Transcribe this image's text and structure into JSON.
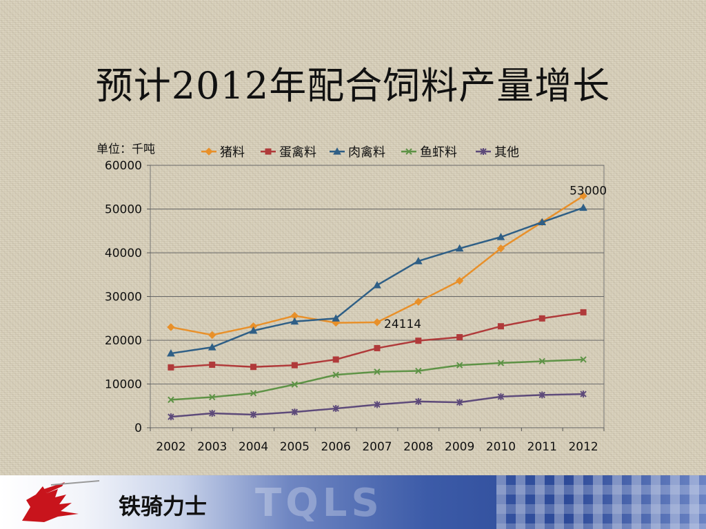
{
  "slide": {
    "title": "预计2012年配合饲料产量增长",
    "unit_label": "单位：千吨",
    "brand": "铁骑力士",
    "footer_watermark": "TQLS"
  },
  "chart_data": {
    "type": "line",
    "title": "",
    "x": [
      "2002",
      "2003",
      "2004",
      "2005",
      "2006",
      "2007",
      "2008",
      "2009",
      "2010",
      "2011",
      "2012"
    ],
    "ylim": [
      0,
      60000
    ],
    "yticks": [
      0,
      10000,
      20000,
      30000,
      40000,
      50000,
      60000
    ],
    "grid": true,
    "legend": "top",
    "series": [
      {
        "name": "猪料",
        "color": "#e8902a",
        "marker": "diamond",
        "values": [
          23000,
          21200,
          23200,
          25600,
          24000,
          24114,
          28800,
          33600,
          41000,
          47000,
          53000
        ]
      },
      {
        "name": "蛋禽料",
        "color": "#b03a3a",
        "marker": "square",
        "values": [
          13800,
          14400,
          13900,
          14300,
          15600,
          18200,
          19900,
          20700,
          23200,
          25000,
          26400
        ]
      },
      {
        "name": "肉禽料",
        "color": "#2f5f86",
        "marker": "triangle",
        "values": [
          17000,
          18400,
          22200,
          24300,
          25000,
          32600,
          38100,
          41000,
          43600,
          47000,
          50300
        ]
      },
      {
        "name": "鱼虾料",
        "color": "#5e9346",
        "marker": "x",
        "values": [
          6400,
          7000,
          7900,
          9900,
          12100,
          12800,
          13000,
          14300,
          14800,
          15200,
          15600
        ]
      },
      {
        "name": "其他",
        "color": "#5d4a7a",
        "marker": "star",
        "values": [
          2500,
          3300,
          3000,
          3600,
          4400,
          5300,
          6000,
          5800,
          7100,
          7500,
          7700
        ]
      }
    ],
    "annotations": [
      {
        "series": "猪料",
        "x": "2007",
        "text": "24114"
      },
      {
        "series": "猪料",
        "x": "2012",
        "text": "53000"
      }
    ]
  }
}
